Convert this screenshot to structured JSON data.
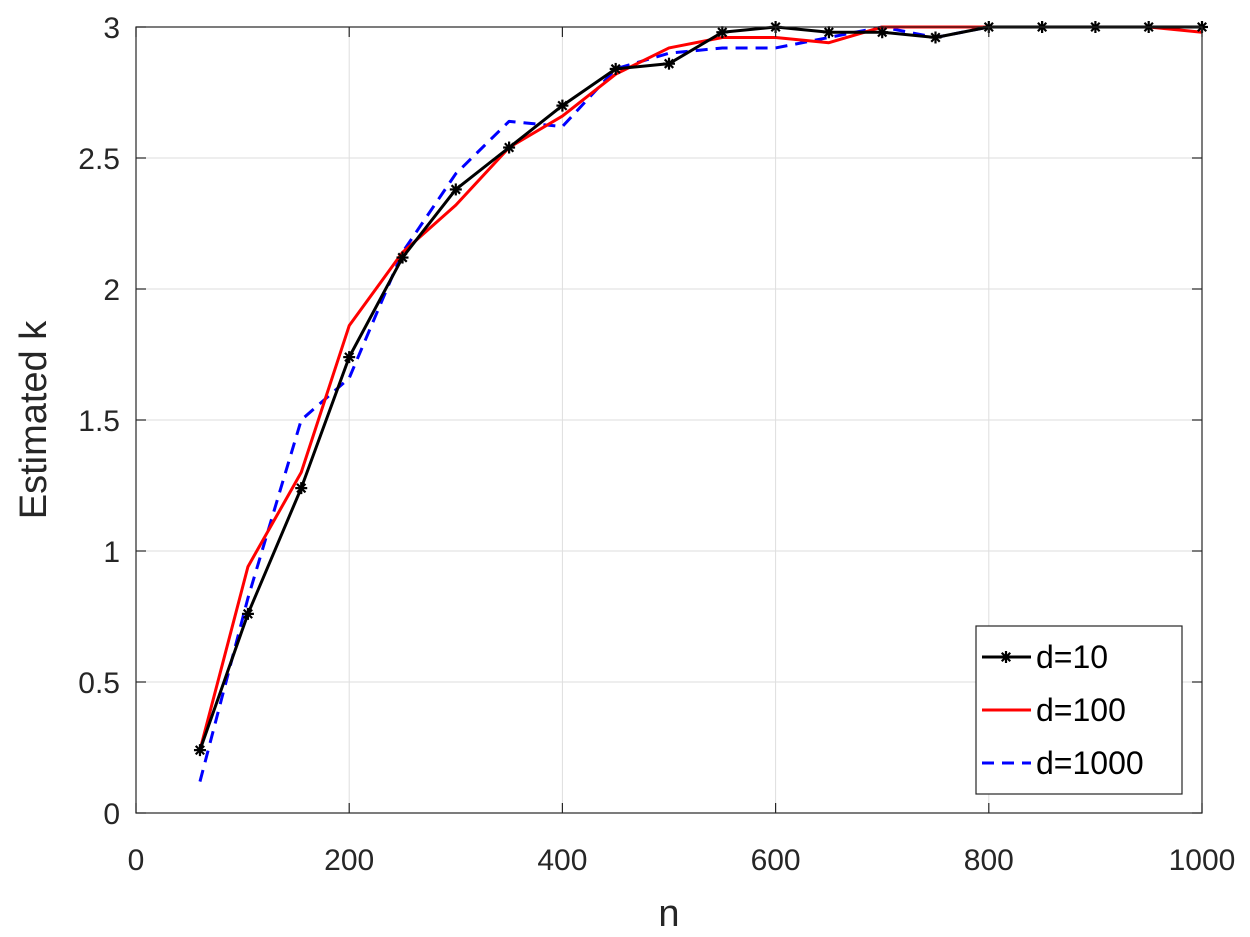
{
  "chart_data": {
    "type": "line",
    "title": "",
    "xlabel": "n",
    "ylabel": "Estimated k",
    "xlim": [
      0,
      1000
    ],
    "ylim": [
      0,
      3
    ],
    "xticks": [
      0,
      200,
      400,
      600,
      800,
      1000
    ],
    "yticks": [
      0,
      0.5,
      1,
      1.5,
      2,
      2.5,
      3
    ],
    "xtick_labels": [
      "0",
      "200",
      "400",
      "600",
      "800",
      "1000"
    ],
    "ytick_labels": [
      "0",
      "0.5",
      "1",
      "1.5",
      "2",
      "2.5",
      "3"
    ],
    "grid": true,
    "legend_position": "bottom-right",
    "series": [
      {
        "name": "d=10",
        "color": "#000000",
        "line_style": "solid",
        "marker": "asterisk",
        "x": [
          60,
          105,
          155,
          200,
          250,
          300,
          350,
          400,
          450,
          500,
          550,
          600,
          650,
          700,
          750,
          800,
          850,
          900,
          950,
          1000
        ],
        "y": [
          0.24,
          0.76,
          1.24,
          1.74,
          2.12,
          2.38,
          2.54,
          2.7,
          2.84,
          2.86,
          2.98,
          3.0,
          2.98,
          2.98,
          2.96,
          3.0,
          3.0,
          3.0,
          3.0,
          3.0
        ]
      },
      {
        "name": "d=100",
        "color": "#ff0000",
        "line_style": "solid",
        "marker": "none",
        "x": [
          60,
          105,
          155,
          200,
          250,
          300,
          350,
          400,
          450,
          500,
          550,
          600,
          650,
          700,
          750,
          800,
          850,
          900,
          950,
          1000
        ],
        "y": [
          0.24,
          0.94,
          1.3,
          1.86,
          2.14,
          2.32,
          2.54,
          2.66,
          2.82,
          2.92,
          2.96,
          2.96,
          2.94,
          3.0,
          3.0,
          3.0,
          3.0,
          3.0,
          3.0,
          2.98
        ]
      },
      {
        "name": "d=1000",
        "color": "#0000ff",
        "line_style": "dashed",
        "marker": "none",
        "x": [
          60,
          105,
          155,
          200,
          250,
          300,
          350,
          400,
          450,
          500,
          550,
          600,
          650,
          700,
          750,
          800,
          850,
          900,
          950,
          1000
        ],
        "y": [
          0.12,
          0.82,
          1.5,
          1.66,
          2.14,
          2.44,
          2.64,
          2.62,
          2.84,
          2.9,
          2.92,
          2.92,
          2.96,
          3.0,
          2.96,
          3.0,
          3.0,
          3.0,
          3.0,
          3.0
        ]
      }
    ]
  }
}
